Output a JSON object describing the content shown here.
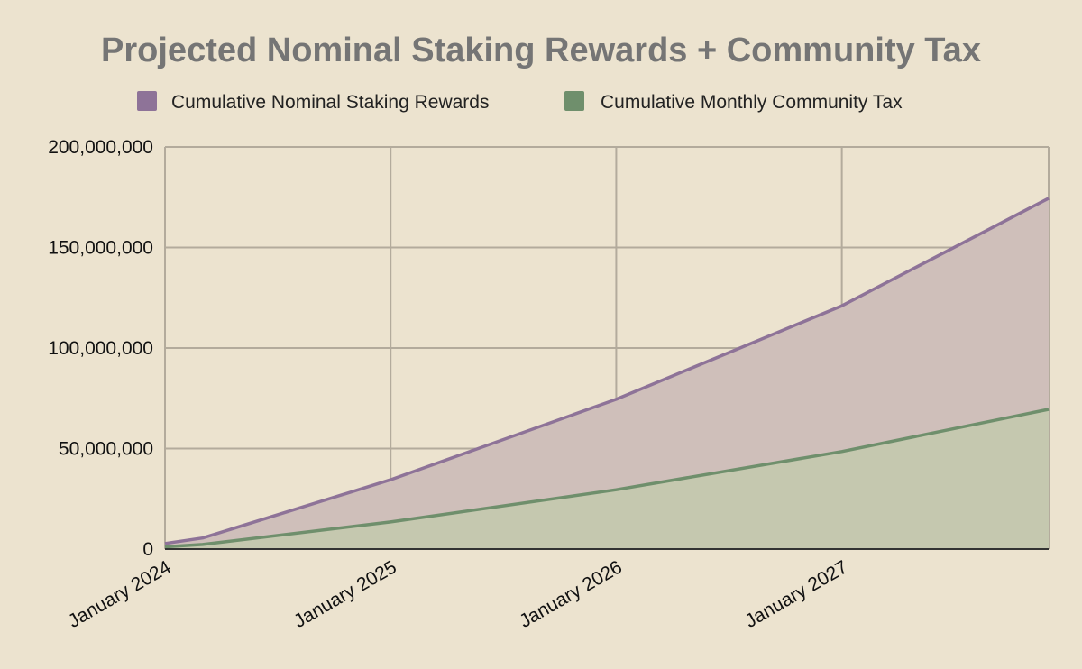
{
  "chart_data": {
    "type": "area",
    "title": "Projected Nominal Staking Rewards + Community Tax",
    "xlabel": "",
    "ylabel": "",
    "x_ticks": [
      "January 2024",
      "January 2025",
      "January 2026",
      "January 2027"
    ],
    "y_ticks": [
      "0",
      "50,000,000",
      "100,000,000",
      "150,000,000",
      "200,000,000"
    ],
    "ylim": [
      0,
      200000000
    ],
    "xlim": [
      "2024-01",
      "2027-12"
    ],
    "grid": true,
    "legend_position": "top",
    "x": [
      "2024-01",
      "2024-03",
      "2025-01",
      "2026-01",
      "2027-01",
      "2027-12"
    ],
    "series": [
      {
        "name": "Cumulative Nominal Staking Rewards",
        "color": "#8e7398",
        "fill": "#cfbfba",
        "values": [
          2800000,
          5500000,
          34500000,
          74500000,
          121000000,
          174500000
        ]
      },
      {
        "name": "Cumulative Monthly Community Tax",
        "color": "#6f8f6c",
        "fill": "#c5c8af",
        "values": [
          1100000,
          2300000,
          13500000,
          29500000,
          48500000,
          69500000
        ]
      }
    ]
  }
}
